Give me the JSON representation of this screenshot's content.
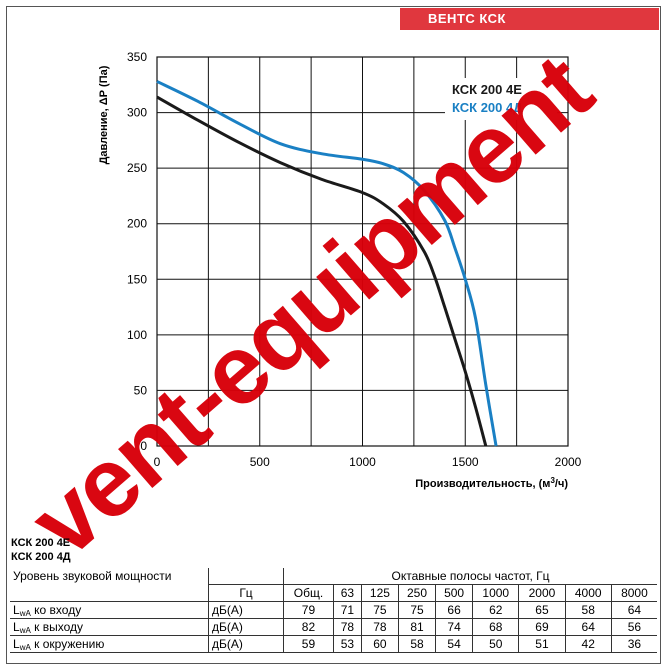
{
  "brand_badge": "ВЕНТС КСК",
  "watermark": "vent-equipment",
  "chart_data": {
    "type": "line",
    "xlabel_main": "Производительность, (м",
    "xlabel_sup": "3",
    "xlabel_tail": "/ч)",
    "ylabel": "Давление, ΔР (Па)",
    "xlim": [
      0,
      2000
    ],
    "ylim": [
      0,
      350
    ],
    "x_ticks": [
      0,
      500,
      1000,
      1500,
      2000
    ],
    "y_ticks": [
      0,
      50,
      100,
      150,
      200,
      250,
      300,
      350
    ],
    "grid": true,
    "legend": "top-right",
    "series": [
      {
        "name": "КСК 200 4Е",
        "color": "#1a1a1a",
        "x": [
          0,
          200,
          400,
          600,
          800,
          1000,
          1100,
          1200,
          1300,
          1350,
          1400,
          1450,
          1500,
          1550,
          1600
        ],
        "y": [
          314,
          293,
          273,
          255,
          240,
          228,
          218,
          202,
          175,
          153,
          125,
          96,
          67,
          35,
          0
        ]
      },
      {
        "name": "КСК 200 4Д",
        "color": "#1a80c4",
        "x": [
          0,
          200,
          400,
          600,
          800,
          1000,
          1100,
          1200,
          1300,
          1400,
          1450,
          1500,
          1550,
          1600,
          1650
        ],
        "y": [
          328,
          310,
          290,
          272,
          263,
          258,
          254,
          246,
          230,
          203,
          178,
          150,
          115,
          55,
          0
        ]
      }
    ]
  },
  "noise": {
    "models": [
      "КСК 200 4Е",
      "КСК 200 4Д"
    ],
    "sound_power_label": "Уровень звуковой мощности",
    "octave_label": "Октавные полосы частот, Гц",
    "hz_label": "Гц",
    "columns": [
      "Общ.",
      "63",
      "125",
      "250",
      "500",
      "1000",
      "2000",
      "4000",
      "8000"
    ],
    "rows": [
      {
        "sub": "wA",
        "label": " ко входу",
        "unit": "дБ(А)",
        "values": [
          "79",
          "71",
          "75",
          "75",
          "66",
          "62",
          "65",
          "58",
          "64"
        ]
      },
      {
        "sub": "wA",
        "label": " к выходу",
        "unit": "дБ(А)",
        "values": [
          "82",
          "78",
          "78",
          "81",
          "74",
          "68",
          "69",
          "64",
          "56"
        ]
      },
      {
        "sub": "wA",
        "label": " к окружению",
        "unit": "дБ(А)",
        "values": [
          "59",
          "53",
          "60",
          "58",
          "54",
          "50",
          "51",
          "42",
          "36"
        ]
      }
    ]
  }
}
